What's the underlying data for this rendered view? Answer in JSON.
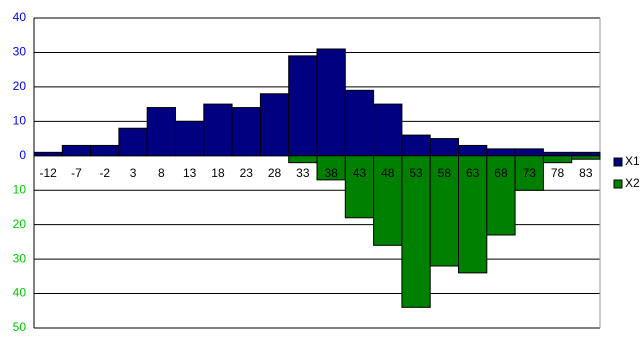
{
  "chart_data": {
    "type": "bar",
    "categories": [
      "-12",
      "-7",
      "-2",
      "3",
      "8",
      "13",
      "18",
      "23",
      "28",
      "33",
      "38",
      "43",
      "48",
      "53",
      "58",
      "63",
      "68",
      "73",
      "78",
      "83"
    ],
    "series": [
      {
        "name": "X1",
        "color": "#000080",
        "values": [
          1,
          3,
          3,
          8,
          14,
          10,
          15,
          14,
          18,
          29,
          31,
          19,
          15,
          6,
          5,
          3,
          2,
          2,
          1,
          1
        ]
      },
      {
        "name": "X2",
        "color": "#008000",
        "values": [
          0,
          0,
          0,
          0,
          0,
          0,
          0,
          0,
          0,
          -2,
          -7,
          -18,
          -26,
          -44,
          -32,
          -34,
          -23,
          -10,
          -2,
          -1
        ]
      }
    ],
    "ylim": [
      -50,
      40
    ],
    "yticks": [
      40,
      30,
      20,
      10,
      0,
      {
        "value": -10,
        "label": "10"
      },
      {
        "value": -20,
        "label": "20"
      },
      {
        "value": -30,
        "label": "30"
      },
      {
        "value": -40,
        "label": "40"
      },
      {
        "value": -50,
        "label": "50"
      }
    ],
    "tick_label_color": "#0000ff",
    "negative_tick_label_color": "#00cc00",
    "grid": true,
    "legend": "right"
  }
}
